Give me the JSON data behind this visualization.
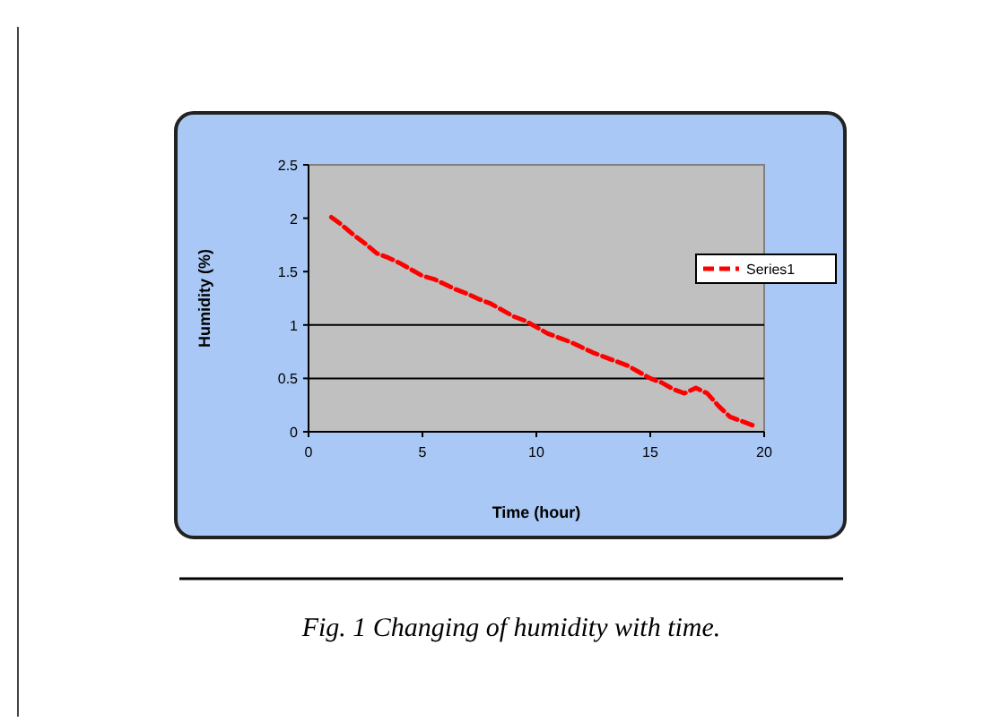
{
  "chart_data": {
    "type": "line",
    "xlabel": "Time (hour)",
    "ylabel": "Humidity (%)",
    "annotations": [
      "Fig. 1 Changing of humidity with time."
    ],
    "x": [
      1,
      1.5,
      2,
      2.5,
      3,
      3.5,
      4,
      4.5,
      5,
      5.5,
      6,
      6.5,
      7,
      7.5,
      8,
      8.5,
      9,
      9.5,
      10,
      10.5,
      11,
      11.5,
      12,
      12.5,
      13,
      13.5,
      14,
      14.5,
      15,
      15.5,
      16,
      16.5,
      17,
      17.5,
      18,
      18.5,
      19,
      19.5
    ],
    "series": [
      {
        "name": "Series1",
        "color": "#ff0000",
        "values": [
          2.01,
          1.93,
          1.84,
          1.76,
          1.67,
          1.63,
          1.58,
          1.52,
          1.46,
          1.43,
          1.38,
          1.33,
          1.29,
          1.24,
          1.2,
          1.14,
          1.08,
          1.04,
          0.98,
          0.92,
          0.88,
          0.84,
          0.79,
          0.74,
          0.7,
          0.66,
          0.62,
          0.56,
          0.5,
          0.46,
          0.4,
          0.36,
          0.41,
          0.36,
          0.24,
          0.14,
          0.1,
          0.06
        ]
      }
    ],
    "xlim": [
      0,
      20
    ],
    "xticks": [
      0,
      5,
      10,
      15,
      20
    ],
    "ylim": [
      0,
      2.5
    ],
    "yticks": [
      0,
      0.5,
      1,
      1.5,
      2,
      2.5
    ],
    "ref_lines": [
      {
        "axis": "y",
        "value": 1,
        "color": "#000000"
      },
      {
        "axis": "y",
        "value": 0.5,
        "color": "#000000"
      }
    ],
    "legend": "right",
    "line_style": "dashed",
    "marker": "none"
  }
}
